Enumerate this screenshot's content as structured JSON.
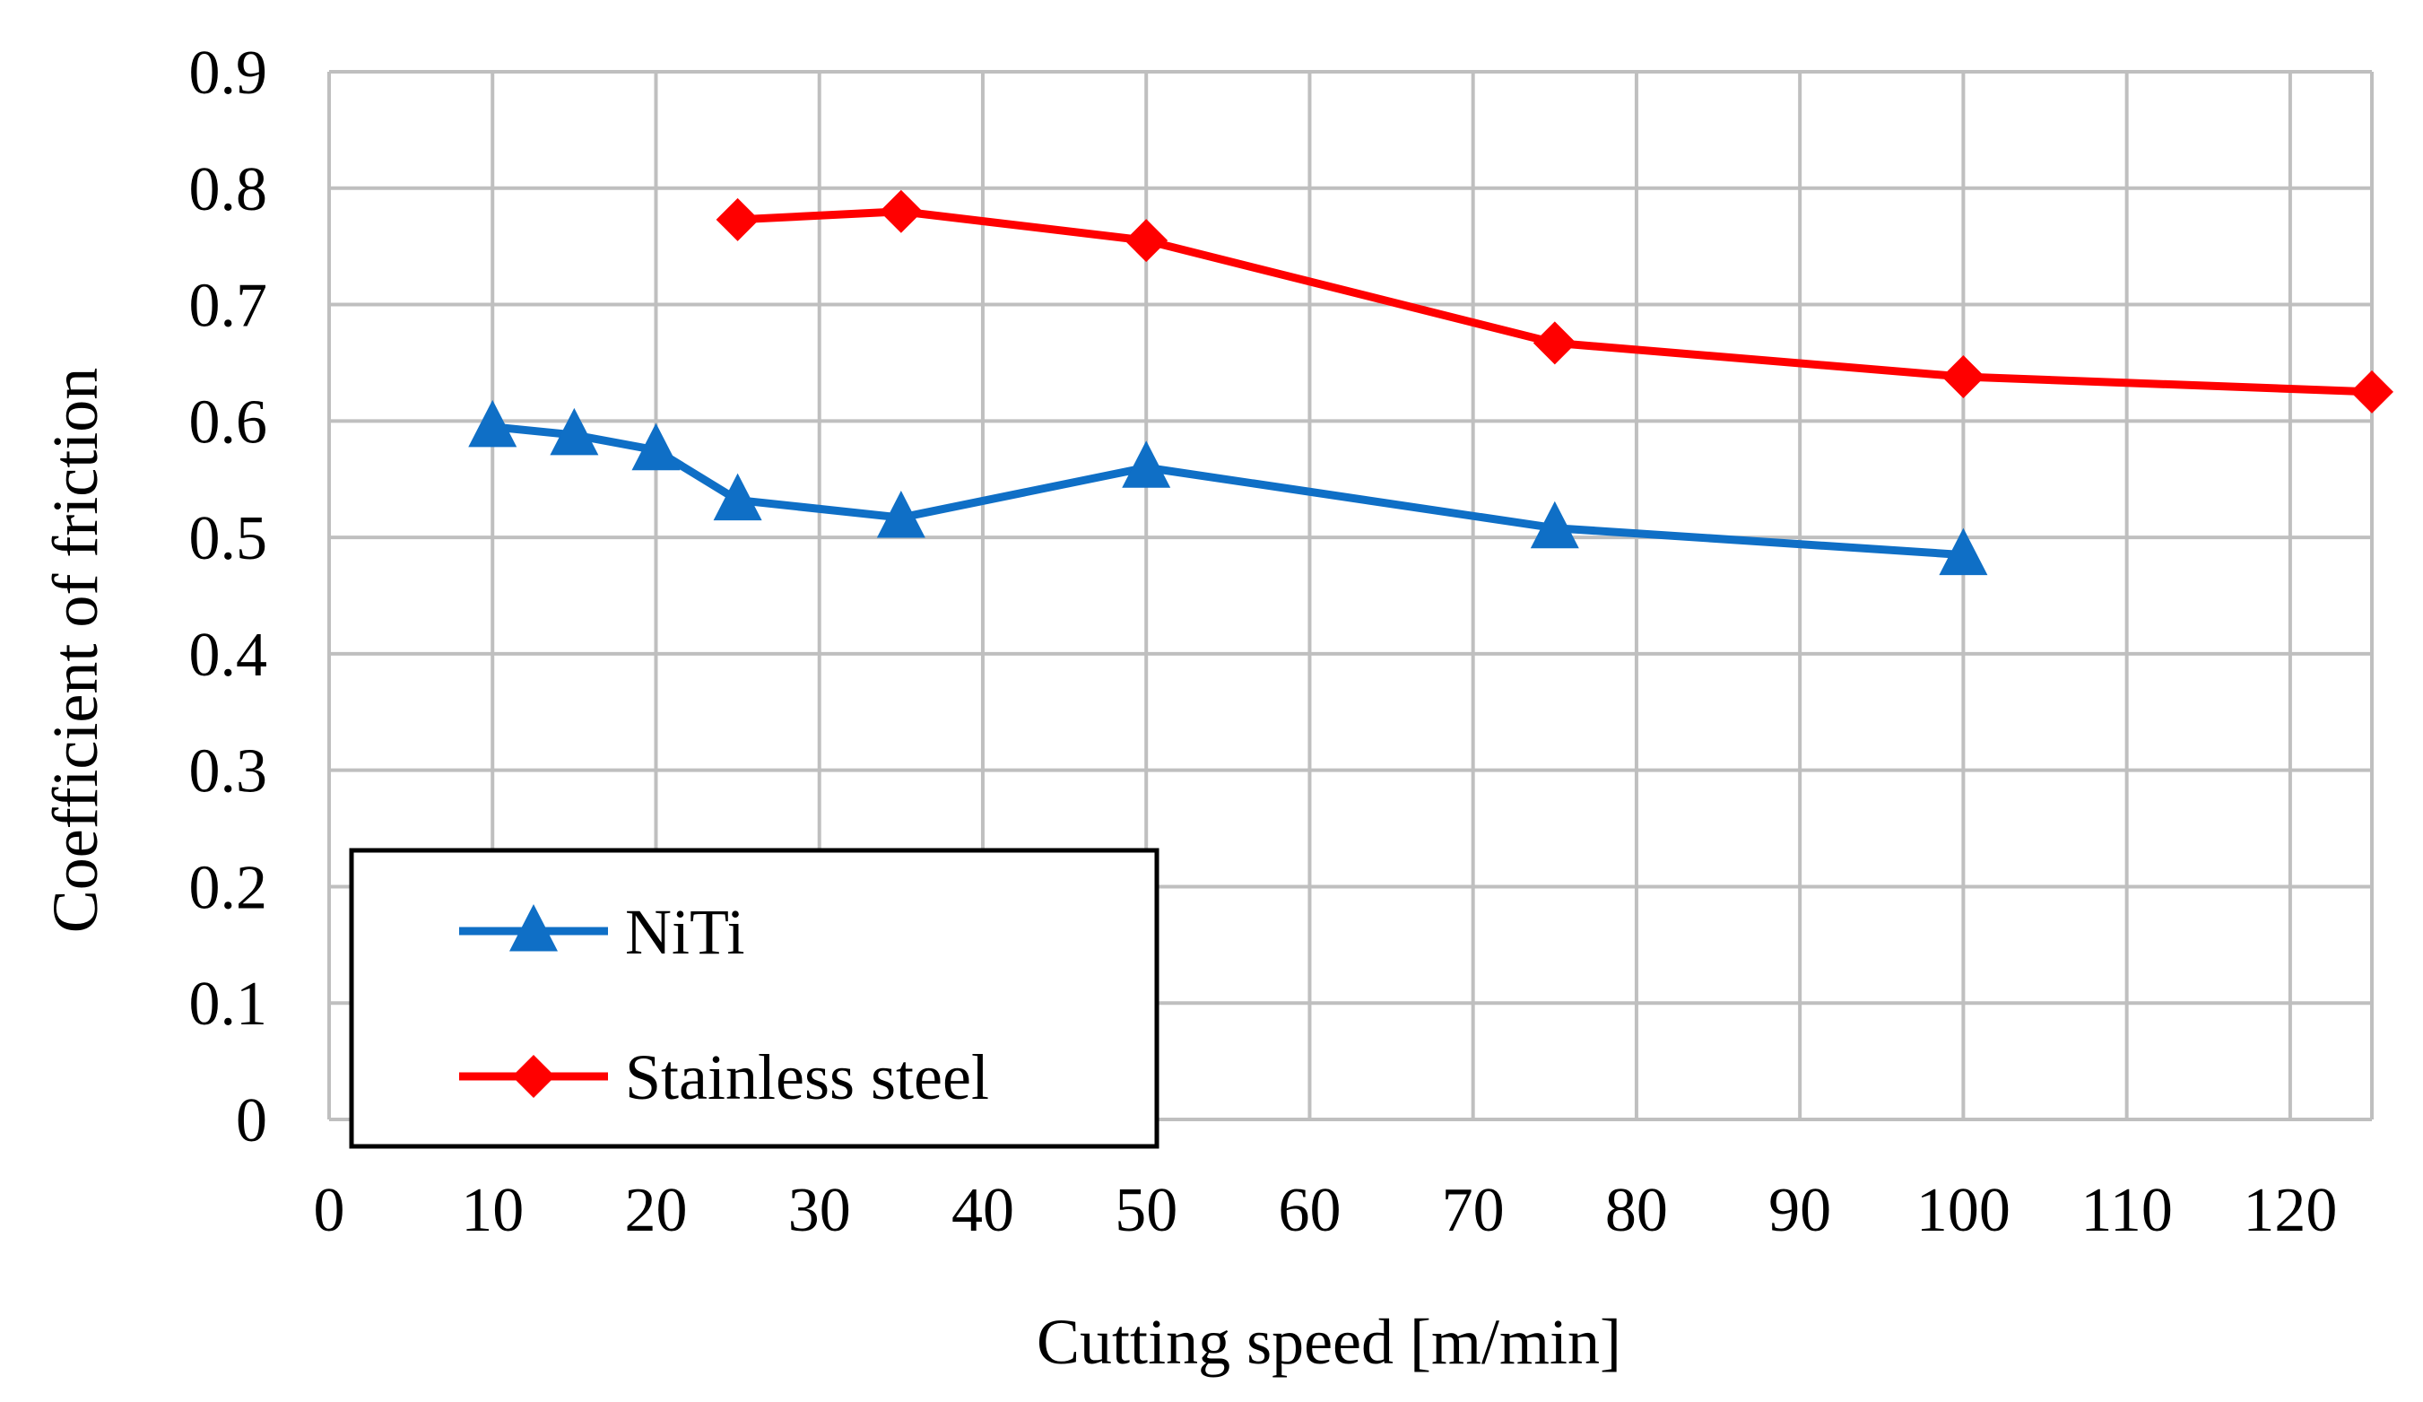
{
  "chart_data": {
    "type": "line",
    "title": "",
    "xlabel": "Cutting speed [m/min]",
    "ylabel": "Coefficient of friction",
    "xlim": [
      0,
      125
    ],
    "ylim": [
      0,
      0.9
    ],
    "xticks": [
      0,
      10,
      20,
      30,
      40,
      50,
      60,
      70,
      80,
      90,
      100,
      110,
      120
    ],
    "yticks": [
      0,
      0.1,
      0.2,
      0.3,
      0.4,
      0.5,
      0.6,
      0.7,
      0.8,
      0.9
    ],
    "xtick_labels": [
      "0",
      "10",
      "20",
      "30",
      "40",
      "50",
      "60",
      "70",
      "80",
      "90",
      "100",
      "110",
      "120"
    ],
    "ytick_labels": [
      "0",
      "0.1",
      "0.2",
      "0.3",
      "0.4",
      "0.5",
      "0.6",
      "0.7",
      "0.8",
      "0.9"
    ],
    "grid": true,
    "legend_position": "bottom-left",
    "series": [
      {
        "name": "NiTi",
        "marker": "triangle",
        "color": "#0F6FC6",
        "x": [
          10,
          15,
          20,
          25,
          35,
          50,
          75,
          100
        ],
        "y": [
          0.595,
          0.588,
          0.575,
          0.532,
          0.517,
          0.56,
          0.508,
          0.485
        ]
      },
      {
        "name": "Stainless steel",
        "marker": "diamond",
        "color": "#FF0000",
        "x": [
          25,
          35,
          50,
          75,
          100,
          125
        ],
        "y": [
          0.773,
          0.78,
          0.755,
          0.667,
          0.638,
          0.625
        ]
      }
    ]
  }
}
